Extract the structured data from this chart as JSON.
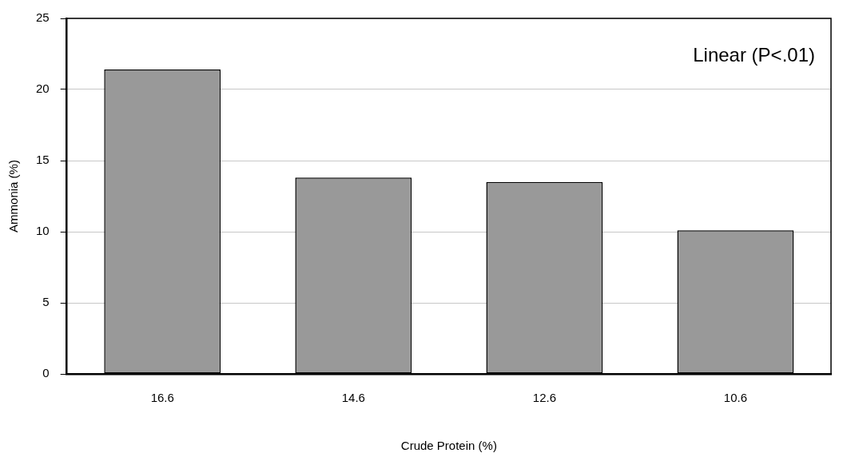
{
  "chart_data": {
    "type": "bar",
    "xlabel": "Crude Protein (%)",
    "ylabel": "Ammonia (%)",
    "categories": [
      "16.6",
      "14.6",
      "12.6",
      "10.6"
    ],
    "values": [
      21.4,
      13.8,
      13.5,
      10.1
    ],
    "color": "#999999",
    "ylim": [
      0,
      25
    ],
    "yticks": [
      0,
      5,
      10,
      15,
      20,
      25
    ],
    "grid": "y",
    "legend": false,
    "annotations": [
      "Linear (P<.01)"
    ]
  }
}
